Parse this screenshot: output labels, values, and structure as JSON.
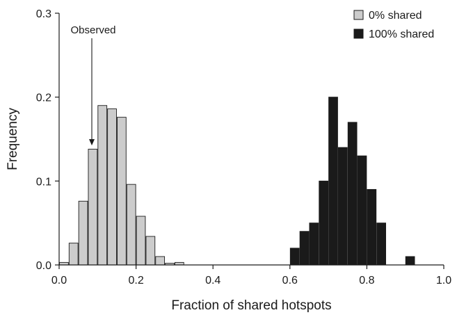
{
  "chart_data": {
    "type": "bar",
    "xlabel": "Fraction of shared hotspots",
    "ylabel": "Frequency",
    "xlim": [
      0.0,
      1.0
    ],
    "ylim": [
      0.0,
      0.3
    ],
    "xticks": [
      "0.0",
      "0.2",
      "0.4",
      "0.6",
      "0.8",
      "1.0"
    ],
    "yticks": [
      "0.0",
      "0.1",
      "0.2",
      "0.3"
    ],
    "bin_width": 0.025,
    "legend_position": "top-right",
    "grid": false,
    "series": [
      {
        "name": "0% shared",
        "color": "#cccccc",
        "x": [
          0.0,
          0.025,
          0.05,
          0.075,
          0.1,
          0.125,
          0.15,
          0.175,
          0.2,
          0.225,
          0.25,
          0.275,
          0.3
        ],
        "values": [
          0.003,
          0.026,
          0.076,
          0.138,
          0.19,
          0.186,
          0.176,
          0.096,
          0.058,
          0.034,
          0.01,
          0.002,
          0.003
        ]
      },
      {
        "name": "100% shared",
        "color": "#1a1a1a",
        "x": [
          0.6,
          0.625,
          0.65,
          0.675,
          0.7,
          0.725,
          0.75,
          0.775,
          0.8,
          0.825,
          0.9
        ],
        "values": [
          0.02,
          0.04,
          0.05,
          0.1,
          0.2,
          0.14,
          0.17,
          0.13,
          0.09,
          0.05,
          0.01
        ]
      }
    ],
    "annotations": [
      {
        "text": "Observed",
        "x": 0.085,
        "y": 0.14
      }
    ]
  }
}
